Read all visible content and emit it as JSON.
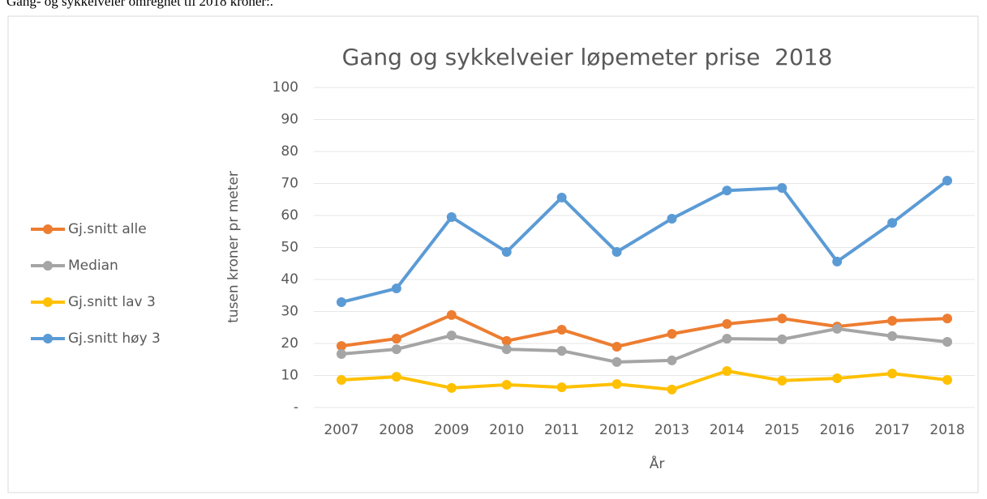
{
  "caption": "Gang- og sykkelveier omregnet til 2018 kroner:.",
  "chart_data": {
    "type": "line",
    "title": "Gang og sykkelveier løpemeter prise  2018",
    "x_label": "År",
    "y_label": "tusen kroner pr meter",
    "categories": [
      "2007",
      "2008",
      "2009",
      "2010",
      "2011",
      "2012",
      "2013",
      "2014",
      "2015",
      "2016",
      "2017",
      "2018"
    ],
    "series": [
      {
        "name": "Gj.snitt alle",
        "color": "#ed7d31",
        "values": [
          19.2,
          21.5,
          28.9,
          20.8,
          24.3,
          19,
          23,
          26.1,
          27.8,
          25.3,
          27.1,
          27.8
        ]
      },
      {
        "name": "Median",
        "color": "#a5a5a5",
        "values": [
          16.7,
          18.2,
          22.5,
          18.2,
          17.7,
          14.2,
          14.7,
          21.5,
          21.3,
          24.6,
          22.3,
          20.5
        ]
      },
      {
        "name": "Gj.snitt lav 3",
        "color": "#ffc000",
        "values": [
          8.6,
          9.6,
          6.1,
          7.1,
          6.3,
          7.3,
          5.6,
          11.4,
          8.4,
          9.1,
          10.6,
          8.6
        ]
      },
      {
        "name": "Gj.snitt høy 3",
        "color": "#5b9bd5",
        "values": [
          32.9,
          37.2,
          59.5,
          48.6,
          65.6,
          48.6,
          59,
          67.8,
          68.6,
          45.6,
          57.7,
          70.9
        ]
      }
    ],
    "ylim": [
      0,
      100
    ],
    "yticks": [
      {
        "value": 0,
        "label": "-"
      },
      10,
      20,
      30,
      40,
      50,
      60,
      70,
      80,
      90,
      100
    ],
    "grid": true,
    "legend": "left"
  }
}
